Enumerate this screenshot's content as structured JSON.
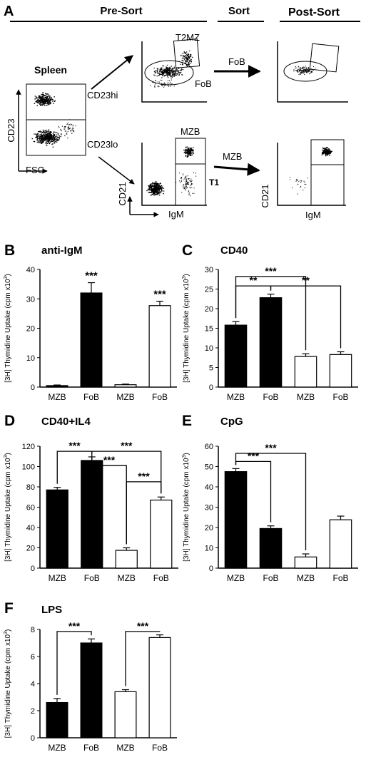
{
  "panel_a": {
    "letter": "A",
    "headers": {
      "pre_sort": "Pre-Sort",
      "sort": "Sort",
      "post_sort": "Post-Sort"
    },
    "spleen": "Spleen",
    "cd23": "CD23",
    "fsc": "FSC",
    "cd23hi": "CD23hi",
    "cd23lo": "CD23lo",
    "t2mz": "T2MZ",
    "fob": "FoB",
    "mzb": "MZB",
    "t1": "T1",
    "cd21": "CD21",
    "igm": "IgM",
    "sort_fob": "FoB",
    "sort_mzb": "MZB"
  },
  "y_axis_title": "[3H] Thymidine Uptake (cpm x10",
  "y_axis_sup": "3",
  "y_axis_close": ")",
  "chart_data": [
    {
      "panel": "B",
      "title": "anti-IgM",
      "type": "bar",
      "categories": [
        "MZB",
        "FoB",
        "MZB",
        "FoB"
      ],
      "values": [
        0.5,
        32,
        0.8,
        27.7
      ],
      "errors": [
        0.2,
        3.5,
        0.2,
        1.5
      ],
      "fills": [
        "#000000",
        "#000000",
        "#ffffff",
        "#ffffff"
      ],
      "ylim": [
        0,
        40
      ],
      "yticks": [
        0,
        10,
        20,
        30,
        40
      ],
      "stars": [
        {
          "bar": 1,
          "label": "***"
        },
        {
          "bar": 3,
          "label": "***"
        }
      ],
      "brackets": []
    },
    {
      "panel": "C",
      "title": "CD40",
      "type": "bar",
      "categories": [
        "MZB",
        "FoB",
        "MZB",
        "FoB"
      ],
      "values": [
        15.8,
        22.8,
        7.8,
        8.3
      ],
      "errors": [
        0.9,
        0.9,
        0.7,
        0.7
      ],
      "fills": [
        "#000000",
        "#000000",
        "#ffffff",
        "#ffffff"
      ],
      "ylim": [
        0,
        30
      ],
      "yticks": [
        0,
        5,
        10,
        15,
        20,
        25,
        30
      ],
      "stars": [],
      "brackets": [
        {
          "from": 0,
          "to": 2,
          "y": 28.2,
          "label": "***"
        },
        {
          "from": 0,
          "to": 1,
          "y": 25.8,
          "label": "**"
        },
        {
          "from": 1,
          "to": 3,
          "y": 25.8,
          "label": "**"
        }
      ]
    },
    {
      "panel": "D",
      "title": "CD40+IL4",
      "type": "bar",
      "categories": [
        "MZB",
        "FoB",
        "MZB",
        "FoB"
      ],
      "values": [
        77,
        106,
        17.5,
        67
      ],
      "errors": [
        2.5,
        3.5,
        2.5,
        3
      ],
      "fills": [
        "#000000",
        "#000000",
        "#ffffff",
        "#ffffff"
      ],
      "ylim": [
        0,
        120
      ],
      "yticks": [
        0,
        20,
        40,
        60,
        80,
        100,
        120
      ],
      "stars": [],
      "brackets": [
        {
          "from": 0,
          "to": 1,
          "y": 115,
          "label": "***"
        },
        {
          "from": 1,
          "to": 3,
          "y": 115,
          "label": "***"
        },
        {
          "from": 1,
          "to": 2,
          "y": 101,
          "label": "***"
        },
        {
          "from": 2,
          "to": 3,
          "y": 85,
          "label": "***"
        }
      ]
    },
    {
      "panel": "E",
      "title": "CpG",
      "type": "bar",
      "categories": [
        "MZB",
        "FoB",
        "MZB",
        "FoB"
      ],
      "values": [
        47.5,
        19.5,
        5.5,
        23.8
      ],
      "errors": [
        1.5,
        1.3,
        1.5,
        1.8
      ],
      "fills": [
        "#000000",
        "#000000",
        "#ffffff",
        "#ffffff"
      ],
      "ylim": [
        0,
        60
      ],
      "yticks": [
        0,
        10,
        20,
        30,
        40,
        50,
        60
      ],
      "stars": [],
      "brackets": [
        {
          "from": 0,
          "to": 2,
          "y": 56.5,
          "label": "***"
        },
        {
          "from": 0,
          "to": 1,
          "y": 52.5,
          "label": "***"
        }
      ]
    },
    {
      "panel": "F",
      "title": "LPS",
      "type": "bar",
      "categories": [
        "MZB",
        "FoB",
        "MZB",
        "FoB"
      ],
      "values": [
        2.6,
        7.0,
        3.4,
        7.4
      ],
      "errors": [
        0.3,
        0.3,
        0.15,
        0.2
      ],
      "fills": [
        "#000000",
        "#000000",
        "#ffffff",
        "#ffffff"
      ],
      "ylim": [
        0,
        8
      ],
      "yticks": [
        0,
        2,
        4,
        6,
        8
      ],
      "stars": [],
      "brackets": [
        {
          "from": 0,
          "to": 1,
          "y": 7.85,
          "label": "***"
        },
        {
          "from": 2,
          "to": 3,
          "y": 7.85,
          "label": "***"
        }
      ]
    }
  ]
}
